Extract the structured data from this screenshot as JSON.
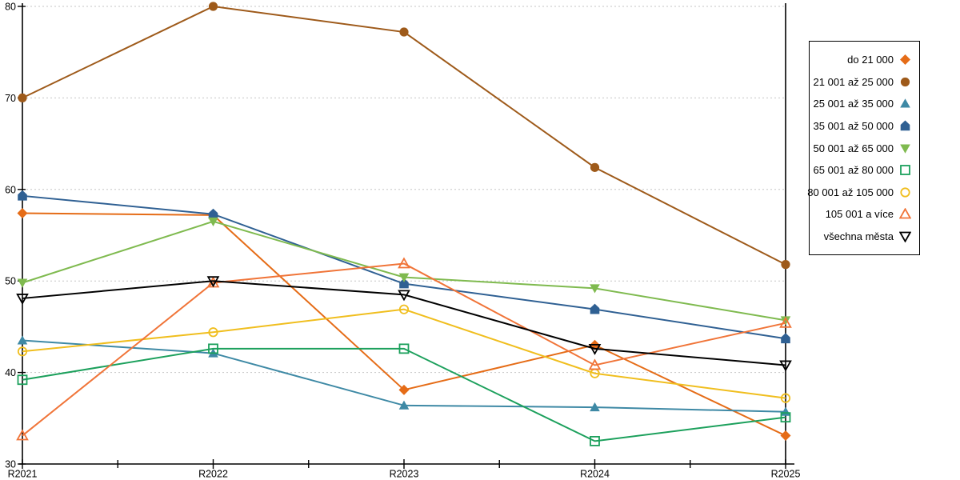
{
  "chart_data": {
    "type": "line",
    "title": "",
    "xlabel": "",
    "ylabel": "",
    "categories": [
      "R2021",
      "R2022",
      "R2023",
      "R2024",
      "R2025"
    ],
    "ylim": [
      30,
      80
    ],
    "yticks": [
      30,
      40,
      50,
      60,
      70,
      80
    ],
    "ytick_labels": [
      "30",
      "40",
      "50",
      "60",
      "70",
      "80"
    ],
    "grid": "horizontal-dashed",
    "legend_position": "right",
    "gridline_color": "#c6c6c6",
    "axis_color": "#000000",
    "series": [
      {
        "name": "do 21 000",
        "marker": "diamond-filled",
        "color": "#E56C17",
        "values": [
          57.4,
          57.2,
          38.1,
          43.0,
          33.1
        ]
      },
      {
        "name": "21 001 až 25 000",
        "marker": "circle-filled",
        "color": "#9E5A1A",
        "values": [
          70.0,
          80.0,
          77.2,
          62.4,
          51.8
        ]
      },
      {
        "name": "25 001 až 35 000",
        "marker": "triangle-up-filled",
        "color": "#3E89A5",
        "values": [
          43.5,
          42.1,
          36.4,
          36.2,
          35.7
        ]
      },
      {
        "name": "35 001 až 50 000",
        "marker": "pentagon-filled",
        "color": "#2F6093",
        "values": [
          59.3,
          57.3,
          49.7,
          46.9,
          43.7
        ]
      },
      {
        "name": "50 001 až 65 000",
        "marker": "triangle-down-filled",
        "color": "#7FBA4F",
        "values": [
          49.8,
          56.5,
          50.4,
          49.2,
          45.7
        ]
      },
      {
        "name": "65 001 až 80 000",
        "marker": "square-open",
        "color": "#1CA05C",
        "values": [
          39.2,
          42.6,
          42.6,
          32.5,
          35.1
        ]
      },
      {
        "name": "80 001 až 105 000",
        "marker": "circle-open",
        "color": "#F0BE1E",
        "values": [
          42.3,
          44.4,
          46.9,
          39.9,
          37.2
        ]
      },
      {
        "name": "105 001 a více",
        "marker": "triangle-up-open",
        "color": "#F07438",
        "values": [
          33.1,
          49.8,
          51.9,
          40.8,
          45.4
        ]
      },
      {
        "name": "všechna města",
        "marker": "triangle-down-open",
        "color": "#000000",
        "values": [
          48.1,
          50.0,
          48.5,
          42.6,
          40.8
        ]
      }
    ]
  }
}
